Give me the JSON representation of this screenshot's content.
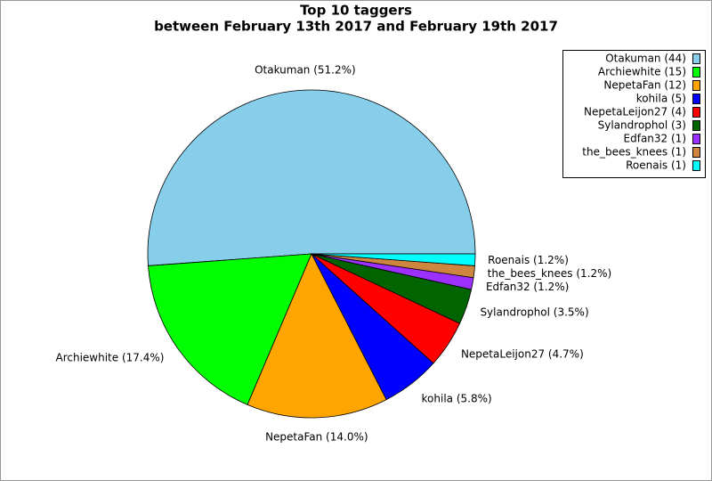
{
  "chart_data": {
    "type": "pie",
    "title": "Top 10 taggers",
    "subtitle": "between February 13th 2017 and February 19th 2017",
    "values": [
      44,
      15,
      12,
      5,
      4,
      3,
      1,
      1,
      1
    ],
    "legend_labels": [
      "Otakuman (44)",
      "Archiewhite (15)",
      "NepetaFan (12)",
      "kohila (5)",
      "NepetaLeijon27 (4)",
      "Sylandrophol (3)",
      "Edfan32 (1)",
      "the_bees_knees (1)",
      "Roenais (1)"
    ],
    "percents": [
      51.2,
      17.4,
      14.0,
      5.8,
      4.7,
      3.5,
      1.2,
      1.2,
      1.2
    ],
    "percent_labels": [
      "Otakuman (51.2%)",
      "Archiewhite (17.4%)",
      "NepetaFan (14.0%)",
      "kohila (5.8%)",
      "NepetaLeijon27 (4.7%)",
      "Sylandrophol (3.5%)",
      "Edfan32 (1.2%)",
      "the_bees_knees (1.2%)",
      "Roenais (1.2%)"
    ],
    "colors": [
      "#87ceeb",
      "#00ff00",
      "#ffa500",
      "#0000ff",
      "#ff0000",
      "#006400",
      "#9b30ff",
      "#cd853f",
      "#00ffff"
    ],
    "legend": "top-right"
  }
}
